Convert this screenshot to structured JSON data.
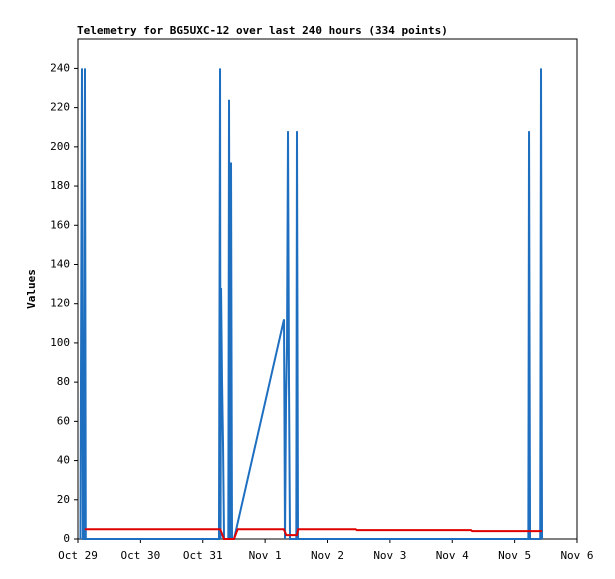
{
  "chart_data": {
    "type": "line",
    "title": "Telemetry for BG5UXC-12 over last 240 hours (334 points)",
    "y_label": "Values",
    "xlim": [
      0,
      8
    ],
    "xticks": [
      {
        "value": 0,
        "label": "Oct 29"
      },
      {
        "value": 1,
        "label": "Oct 30"
      },
      {
        "value": 2,
        "label": "Oct 31"
      },
      {
        "value": 3,
        "label": "Nov 1"
      },
      {
        "value": 4,
        "label": "Nov 2"
      },
      {
        "value": 5,
        "label": "Nov 3"
      },
      {
        "value": 6,
        "label": "Nov 4"
      },
      {
        "value": 7,
        "label": "Nov 5"
      },
      {
        "value": 8,
        "label": "Nov 6"
      }
    ],
    "ylim": [
      0,
      255
    ],
    "yticks": [
      0,
      20,
      40,
      60,
      80,
      100,
      120,
      140,
      160,
      180,
      200,
      220,
      240
    ],
    "grid": false,
    "series": [
      {
        "color": "#1f6fc0",
        "x": [
          0.04,
          0.064,
          0.08,
          0.1,
          0.112,
          0.125,
          2.26,
          2.277,
          2.285,
          2.293,
          2.309,
          2.325,
          2.341,
          2.41,
          2.421,
          2.437,
          2.453,
          2.469,
          2.501,
          3.303,
          3.319,
          3.335,
          3.351,
          3.367,
          3.383,
          3.399,
          3.5,
          3.511,
          3.527,
          7.22,
          7.231,
          7.247,
          7.41,
          7.423,
          7.439
        ],
        "values": [
          0,
          240,
          0,
          0,
          240,
          0,
          0,
          240,
          0,
          128,
          80,
          48,
          0,
          0,
          224,
          0,
          192,
          0,
          0,
          112,
          0,
          70,
          98,
          208,
          80,
          0,
          0,
          208,
          0,
          0,
          208,
          0,
          0,
          240,
          0
        ]
      },
      {
        "color": "#e00000",
        "x": [
          0.11,
          2.28,
          2.34,
          2.5,
          2.56,
          3.3,
          3.34,
          3.51,
          3.53,
          4.45,
          4.47,
          6.3,
          6.32,
          7.44
        ],
        "values": [
          5,
          5,
          0,
          0,
          5,
          5,
          2,
          2,
          5,
          5,
          4.5,
          4.5,
          4,
          4
        ]
      }
    ]
  }
}
